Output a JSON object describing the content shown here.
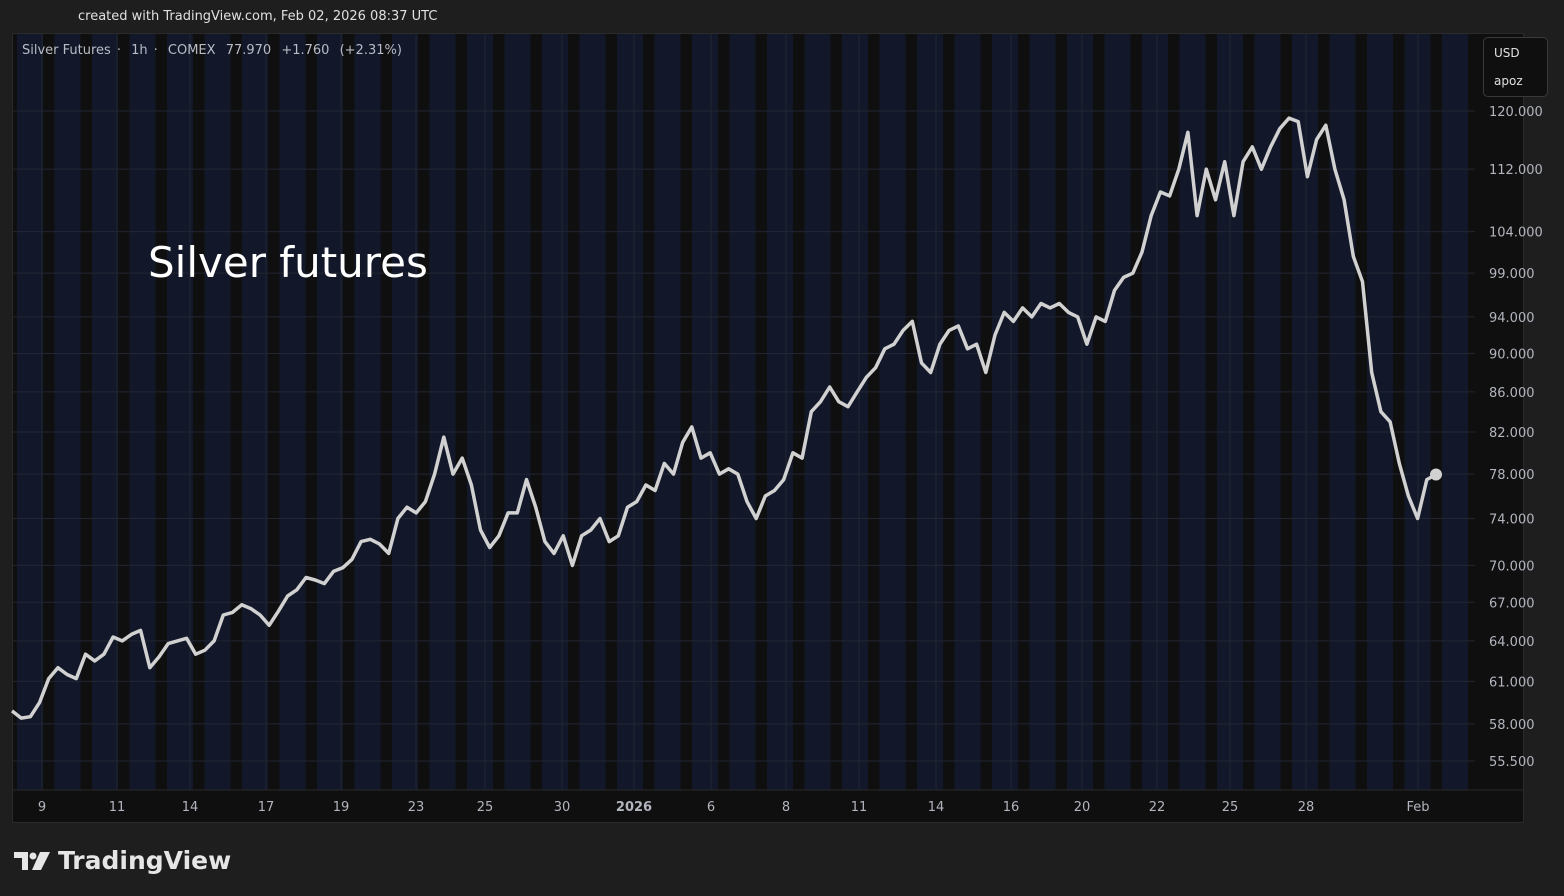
{
  "header": {
    "text": "created with TradingView.com, Feb 02, 2026 08:37 UTC"
  },
  "legend": {
    "symbol": "Silver Futures",
    "interval": "1h",
    "exchange": "COMEX",
    "last": "77.970",
    "change": "+1.760",
    "change_pct": "(+2.31%)"
  },
  "currency_box": {
    "currency": "USD",
    "unit": "apoz"
  },
  "annotation": "Silver futures",
  "watermark": "TradingView",
  "colors": {
    "line": "#d1d1d1",
    "session_bg": "#121829",
    "off_session_bg": "#0f0f0f",
    "grid": "#222633",
    "background": "#1e1e1e"
  },
  "chart_data": {
    "type": "line",
    "title": "",
    "y_scale": "log",
    "ylim": [
      53,
      123
    ],
    "grid": true,
    "y_ticks": [
      120,
      112,
      104,
      99,
      94,
      90,
      86,
      82,
      78,
      74,
      70,
      67,
      64,
      61,
      58,
      55.5
    ],
    "y_tick_labels": [
      "120.000",
      "112.000",
      "104.000",
      "99.000",
      "94.000",
      "90.000",
      "86.000",
      "82.000",
      "78.000",
      "74.000",
      "70.000",
      "67.000",
      "64.000",
      "61.000",
      "58.000",
      "55.500"
    ],
    "x_ticks": [
      {
        "label": "9",
        "date": "2025-12-09"
      },
      {
        "label": "11",
        "date": "2025-12-11"
      },
      {
        "label": "14",
        "date": "2025-12-14"
      },
      {
        "label": "17",
        "date": "2025-12-17"
      },
      {
        "label": "19",
        "date": "2025-12-19"
      },
      {
        "label": "23",
        "date": "2025-12-23"
      },
      {
        "label": "25",
        "date": "2025-12-25"
      },
      {
        "label": "30",
        "date": "2025-12-30"
      },
      {
        "label": "2026",
        "date": "2026-01-01",
        "bold": true
      },
      {
        "label": "6",
        "date": "2026-01-06"
      },
      {
        "label": "8",
        "date": "2026-01-08"
      },
      {
        "label": "11",
        "date": "2026-01-11"
      },
      {
        "label": "14",
        "date": "2026-01-14"
      },
      {
        "label": "16",
        "date": "2026-01-16"
      },
      {
        "label": "20",
        "date": "2026-01-20"
      },
      {
        "label": "22",
        "date": "2026-01-22"
      },
      {
        "label": "25",
        "date": "2026-01-25"
      },
      {
        "label": "28",
        "date": "2026-01-28"
      },
      {
        "label": "Feb",
        "date": "2026-02-01"
      }
    ],
    "last_value": 77.97,
    "values": [
      58.9,
      58.4,
      58.5,
      59.5,
      61.2,
      62.0,
      61.5,
      61.2,
      63.0,
      62.5,
      63.0,
      64.3,
      64.0,
      64.5,
      64.8,
      62.0,
      62.8,
      63.8,
      64.0,
      64.2,
      63.0,
      63.3,
      64.0,
      66.0,
      66.2,
      66.8,
      66.5,
      66.0,
      65.2,
      66.3,
      67.5,
      68.0,
      69.0,
      68.8,
      68.5,
      69.5,
      69.8,
      70.5,
      72.0,
      72.2,
      71.8,
      71.0,
      74.0,
      75.0,
      74.5,
      75.5,
      78.0,
      81.5,
      78.0,
      79.5,
      77.0,
      73.0,
      71.5,
      72.5,
      74.5,
      74.5,
      77.5,
      75.0,
      72.0,
      71.0,
      72.5,
      70.0,
      72.5,
      73.0,
      74.0,
      72.0,
      72.5,
      75.0,
      75.5,
      77.0,
      76.5,
      79.0,
      78.0,
      81.0,
      82.5,
      79.5,
      80.0,
      78.0,
      78.5,
      78.0,
      75.5,
      74.0,
      76.0,
      76.5,
      77.5,
      80.0,
      79.5,
      84.0,
      85.0,
      86.5,
      85.0,
      84.5,
      86.0,
      87.5,
      88.5,
      90.5,
      91.0,
      92.5,
      93.5,
      89.0,
      88.0,
      91.0,
      92.5,
      93.0,
      90.5,
      91.0,
      88.0,
      92.0,
      94.5,
      93.5,
      95.0,
      94.0,
      95.5,
      95.0,
      95.5,
      94.5,
      94.0,
      91.0,
      94.0,
      93.5,
      97.0,
      98.5,
      99.0,
      101.5,
      106.0,
      109.0,
      108.5,
      112.0,
      117.0,
      106.0,
      112.0,
      108.0,
      113.0,
      106.0,
      113.0,
      115.0,
      112.0,
      115.0,
      117.5,
      119.0,
      118.5,
      111.0,
      116.0,
      118.0,
      112.0,
      108.0,
      101.0,
      98.0,
      88.0,
      84.0,
      83.0,
      79.0,
      76.0,
      74.0,
      77.5,
      77.97
    ]
  }
}
